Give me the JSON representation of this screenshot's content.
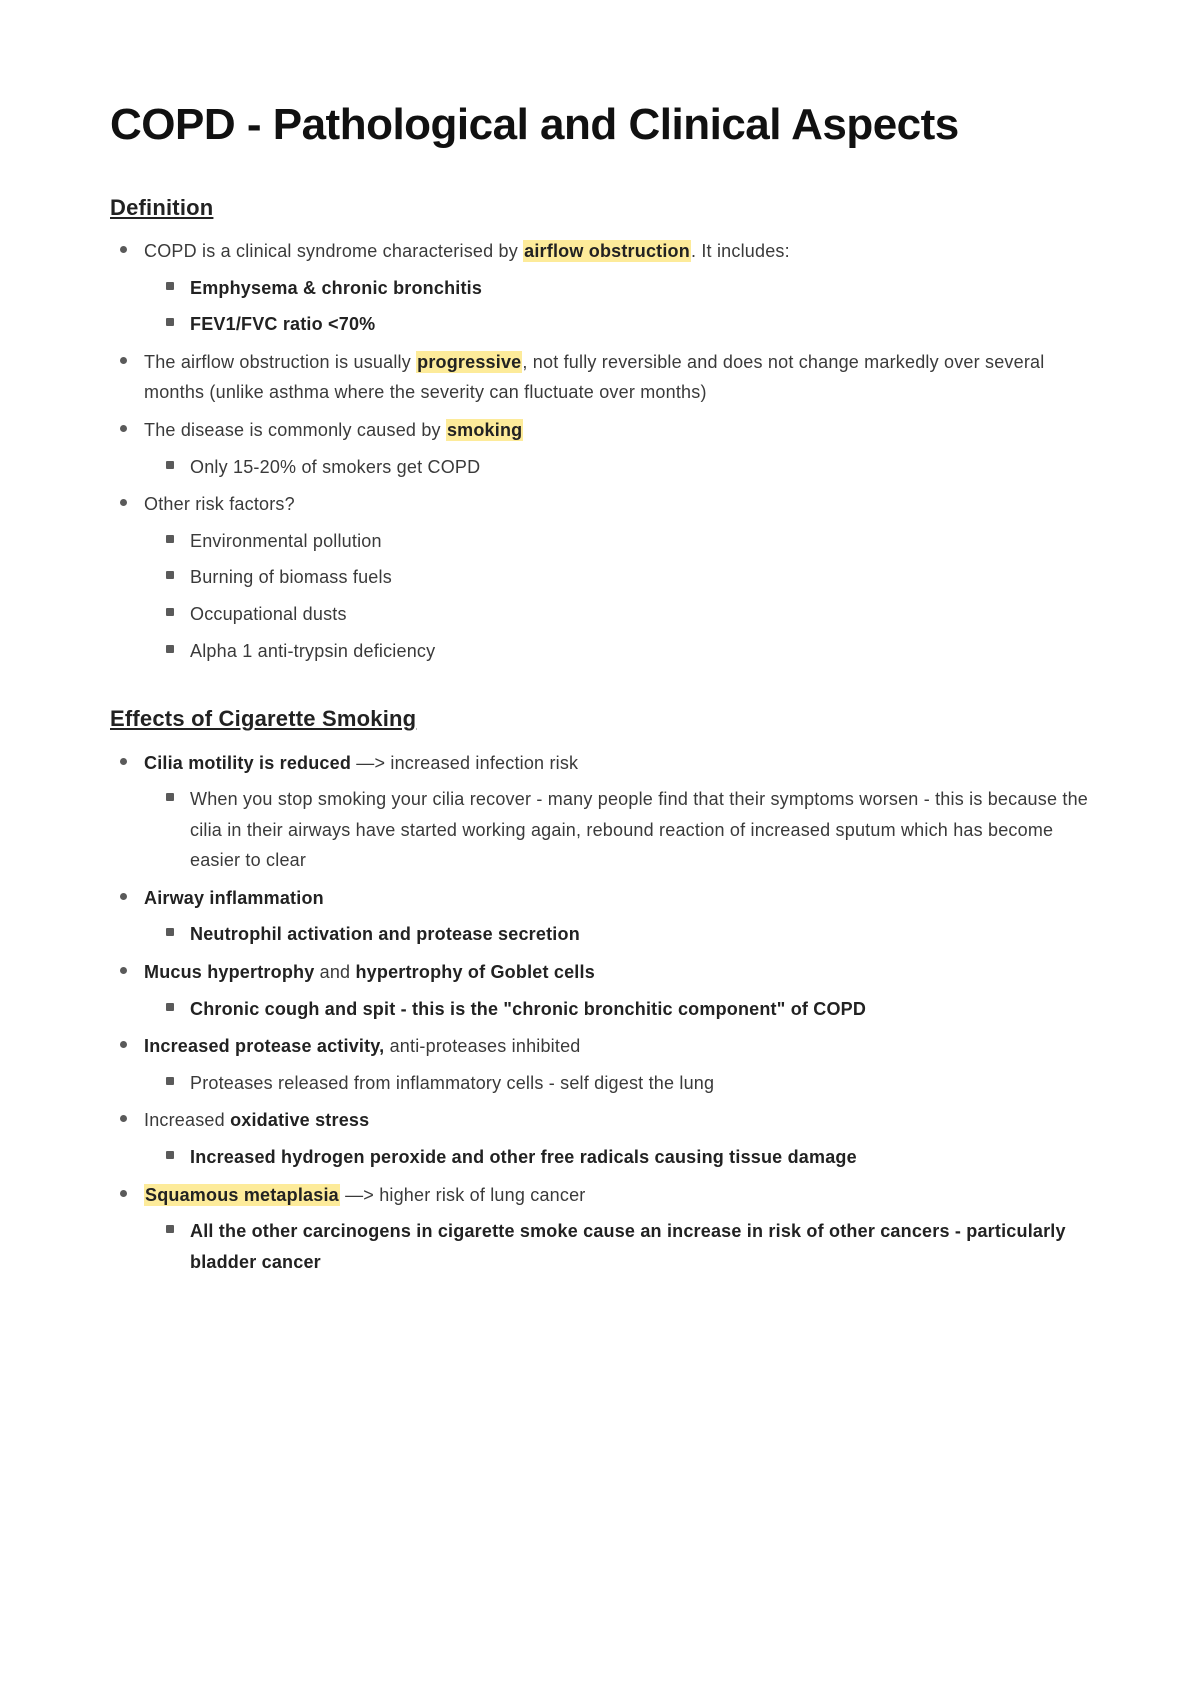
{
  "colors": {
    "text": "#3a3a3a",
    "heading": "#111111",
    "highlight": "#fdeb9a",
    "bullet": "#5a5a5a",
    "background": "#ffffff"
  },
  "typography": {
    "h1_fontsize": 44,
    "h2_fontsize": 22,
    "body_fontsize": 18,
    "h1_weight": 800,
    "h2_weight": 700,
    "font_family": "-apple-system, Helvetica Neue, Arial, sans-serif"
  },
  "title": "COPD - Pathological and Clinical Aspects",
  "sections": {
    "definition": {
      "heading": "Definition",
      "item1_prefix": "COPD is a clinical syndrome characterised by ",
      "item1_hl": "airflow obstruction",
      "item1_suffix": ". It includes:",
      "item1_sub1": "Emphysema & chronic bronchitis",
      "item1_sub2": "FEV1/FVC ratio <70%",
      "item2_prefix": "The airflow obstruction is usually ",
      "item2_hl": "progressive",
      "item2_suffix": ", not fully reversible and does not change markedly over several months (unlike asthma where the severity can fluctuate over months)",
      "item3_prefix": "The disease is commonly caused by ",
      "item3_hl": "smoking",
      "item3_sub1": "Only 15-20% of smokers get COPD",
      "item4": "Other risk factors?",
      "item4_sub1": "Environmental pollution",
      "item4_sub2": "Burning of biomass fuels",
      "item4_sub3": "Occupational dusts",
      "item4_sub4": "Alpha 1 anti-trypsin deficiency"
    },
    "effects": {
      "heading": " Effects of Cigarette Smoking",
      "e1_bold": "Cilia motility is reduced",
      "e1_rest": " —> increased infection risk",
      "e1_sub1": "When you stop smoking your cilia recover - many people find that their symptoms worsen - this is because the cilia in their airways have started working again, rebound reaction of increased sputum which has become easier to clear",
      "e2_bold": "Airway inflammation",
      "e2_sub1": "Neutrophil activation and protease secretion",
      "e3_b1": "Mucus hypertrophy",
      "e3_mid": " and ",
      "e3_b2": "hypertrophy of Goblet cells",
      "e3_sub1": "Chronic cough and spit - this is the \"chronic bronchitic component\" of COPD",
      "e4_bold": "Increased protease activity,",
      "e4_rest": " anti-proteases inhibited",
      "e4_sub1": "Proteases released from inflammatory cells - self digest the lung",
      "e5_pre": "Increased ",
      "e5_bold": "oxidative stress",
      "e5_sub1": "Increased hydrogen peroxide and other free radicals causing tissue damage",
      "e6_hl": "Squamous metaplasia",
      "e6_rest": " —> higher risk of lung cancer",
      "e6_sub1_pre": "All the other carcinogens in cigarette smoke cause an increase in risk of other cancers - particularly ",
      "e6_sub1_bold": "bladder cancer"
    }
  }
}
